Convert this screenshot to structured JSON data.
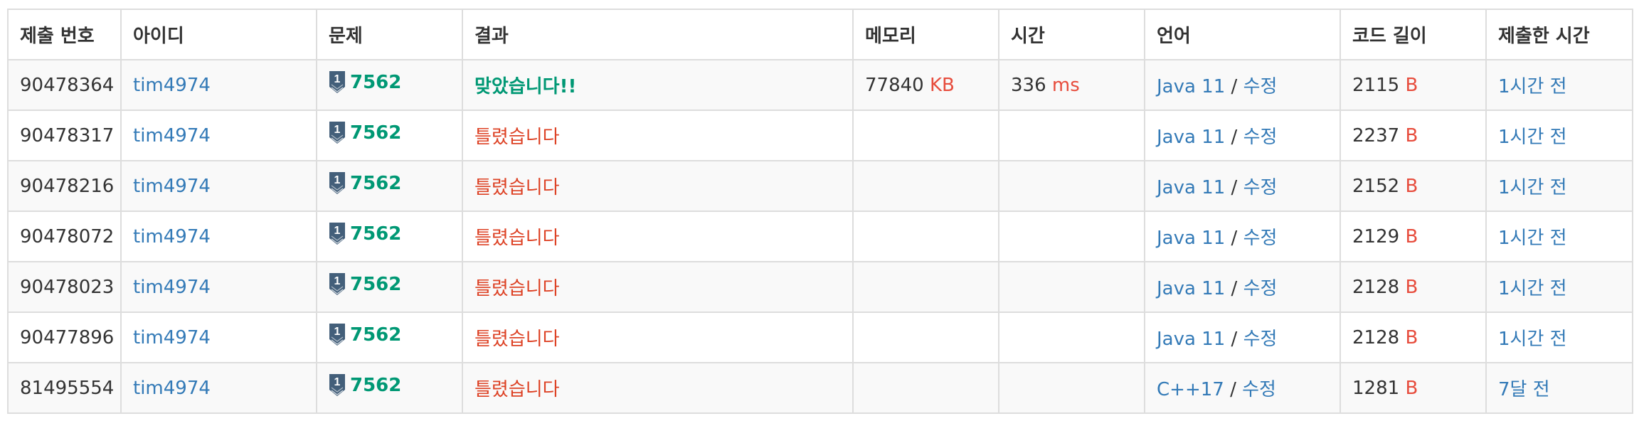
{
  "headers": [
    "제출 번호",
    "아이디",
    "문제",
    "결과",
    "메모리",
    "시간",
    "언어",
    "코드 길이",
    "제출한 시간"
  ],
  "icons": {
    "tier": "silver-1-tier-icon",
    "tier_color": "#435f7a"
  },
  "rows": [
    {
      "id": "90478364",
      "user": "tim4974",
      "tier": "1",
      "problem": "7562",
      "result": "맞았습니다!!",
      "result_type": "ac",
      "memory": "77840",
      "memory_unit": "KB",
      "time": "336",
      "time_unit": "ms",
      "lang": "Java 11",
      "sep": "/",
      "edit": "수정",
      "code_len": "2115",
      "code_unit": "B",
      "submitted": "1시간 전"
    },
    {
      "id": "90478317",
      "user": "tim4974",
      "tier": "1",
      "problem": "7562",
      "result": "틀렸습니다",
      "result_type": "wa",
      "memory": "",
      "memory_unit": "",
      "time": "",
      "time_unit": "",
      "lang": "Java 11",
      "sep": "/",
      "edit": "수정",
      "code_len": "2237",
      "code_unit": "B",
      "submitted": "1시간 전"
    },
    {
      "id": "90478216",
      "user": "tim4974",
      "tier": "1",
      "problem": "7562",
      "result": "틀렸습니다",
      "result_type": "wa",
      "memory": "",
      "memory_unit": "",
      "time": "",
      "time_unit": "",
      "lang": "Java 11",
      "sep": "/",
      "edit": "수정",
      "code_len": "2152",
      "code_unit": "B",
      "submitted": "1시간 전"
    },
    {
      "id": "90478072",
      "user": "tim4974",
      "tier": "1",
      "problem": "7562",
      "result": "틀렸습니다",
      "result_type": "wa",
      "memory": "",
      "memory_unit": "",
      "time": "",
      "time_unit": "",
      "lang": "Java 11",
      "sep": "/",
      "edit": "수정",
      "code_len": "2129",
      "code_unit": "B",
      "submitted": "1시간 전"
    },
    {
      "id": "90478023",
      "user": "tim4974",
      "tier": "1",
      "problem": "7562",
      "result": "틀렸습니다",
      "result_type": "wa",
      "memory": "",
      "memory_unit": "",
      "time": "",
      "time_unit": "",
      "lang": "Java 11",
      "sep": "/",
      "edit": "수정",
      "code_len": "2128",
      "code_unit": "B",
      "submitted": "1시간 전"
    },
    {
      "id": "90477896",
      "user": "tim4974",
      "tier": "1",
      "problem": "7562",
      "result": "틀렸습니다",
      "result_type": "wa",
      "memory": "",
      "memory_unit": "",
      "time": "",
      "time_unit": "",
      "lang": "Java 11",
      "sep": "/",
      "edit": "수정",
      "code_len": "2128",
      "code_unit": "B",
      "submitted": "1시간 전"
    },
    {
      "id": "81495554",
      "user": "tim4974",
      "tier": "1",
      "problem": "7562",
      "result": "틀렸습니다",
      "result_type": "wa",
      "memory": "",
      "memory_unit": "",
      "time": "",
      "time_unit": "",
      "lang": "C++17",
      "sep": "/",
      "edit": "수정",
      "code_len": "1281",
      "code_unit": "B",
      "submitted": "7달 전"
    }
  ]
}
